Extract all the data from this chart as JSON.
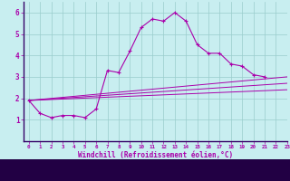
{
  "xlabel": "Windchill (Refroidissement éolien,°C)",
  "background_color": "#c8eef0",
  "line_color": "#aa00aa",
  "grid_color": "#99cccc",
  "border_color": "#330066",
  "xlim": [
    -0.5,
    23
  ],
  "ylim": [
    0,
    6.5
  ],
  "yticks": [
    1,
    2,
    3,
    4,
    5,
    6
  ],
  "xticks": [
    0,
    1,
    2,
    3,
    4,
    5,
    6,
    7,
    8,
    9,
    10,
    11,
    12,
    13,
    14,
    15,
    16,
    17,
    18,
    19,
    20,
    21,
    22,
    23
  ],
  "series_main": {
    "x": [
      0,
      1,
      2,
      3,
      4,
      5,
      6,
      7,
      8,
      9,
      10,
      11,
      12,
      13,
      14,
      15,
      16,
      17,
      18,
      19,
      20,
      21
    ],
    "y": [
      1.9,
      1.3,
      1.1,
      1.2,
      1.2,
      1.1,
      1.5,
      3.3,
      3.2,
      4.2,
      5.3,
      5.7,
      5.6,
      6.0,
      5.6,
      4.5,
      4.1,
      4.1,
      3.6,
      3.5,
      3.1,
      3.0
    ]
  },
  "series_lines": [
    {
      "x": [
        0,
        23
      ],
      "y": [
        1.9,
        3.0
      ]
    },
    {
      "x": [
        0,
        23
      ],
      "y": [
        1.9,
        2.7
      ]
    },
    {
      "x": [
        0,
        23
      ],
      "y": [
        1.9,
        2.4
      ]
    }
  ],
  "bottom_bar_color": "#220044",
  "bottom_bar_height": 0.12
}
